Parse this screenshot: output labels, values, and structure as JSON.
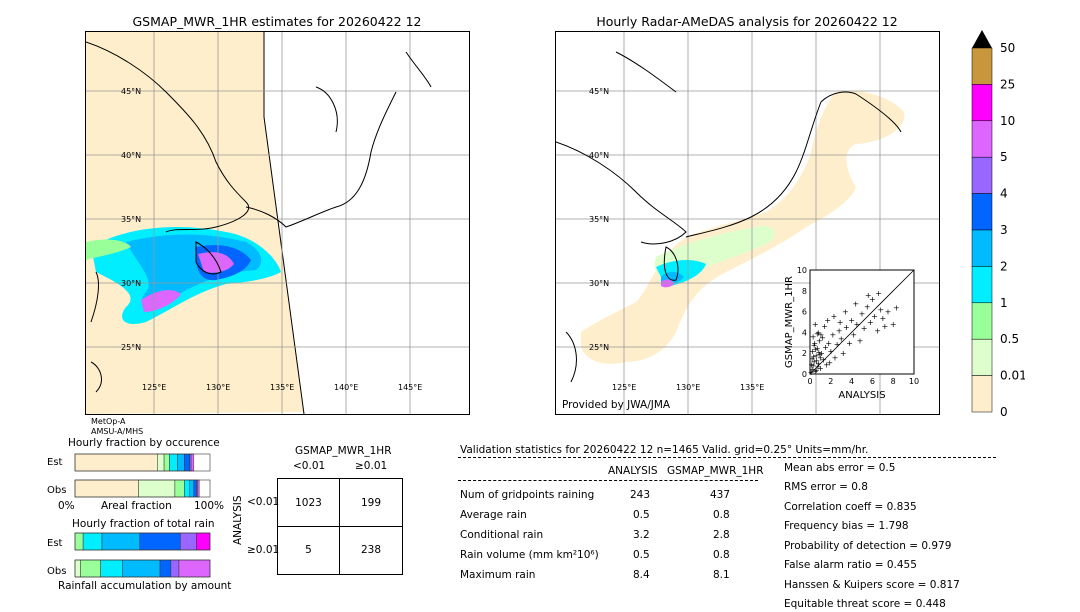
{
  "map_left": {
    "title": "GSMAP_MWR_1HR estimates for 20260422 12",
    "lat_labels": [
      "45°N",
      "40°N",
      "35°N",
      "30°N",
      "25°N"
    ],
    "lon_labels": [
      "125°E",
      "130°E",
      "135°E",
      "140°E",
      "145°E"
    ],
    "satellite_notes": [
      "MetOp-A",
      "AMSU-A/MHS"
    ]
  },
  "map_right": {
    "title": "Hourly Radar-AMeDAS analysis for 20260422 12",
    "lat_labels": [
      "45°N",
      "40°N",
      "35°N",
      "30°N",
      "25°N"
    ],
    "lon_labels": [
      "125°E",
      "130°E",
      "135°E"
    ],
    "credit": "Provided by JWA/JMA"
  },
  "colorbar": {
    "labels": [
      "50",
      "25",
      "10",
      "5",
      "4",
      "3",
      "2",
      "1",
      "0.5",
      "0.01",
      "0"
    ],
    "colors": [
      "#c8963c",
      "#ff00ff",
      "#dd66ff",
      "#9966ff",
      "#0066ff",
      "#00bbff",
      "#00eeff",
      "#99ff99",
      "#ddffcc",
      "#ffeecc"
    ]
  },
  "chart_data": [
    {
      "type": "scatter",
      "xlabel": "ANALYSIS",
      "ylabel": "GSMAP_MWR_1HR",
      "xlim": [
        0,
        10
      ],
      "ylim": [
        0,
        10
      ],
      "ticks": [
        "0",
        "2",
        "4",
        "6",
        "8",
        "10"
      ],
      "points": [
        [
          0.1,
          0.2
        ],
        [
          0.2,
          0.5
        ],
        [
          0.3,
          0.8
        ],
        [
          0.4,
          1.2
        ],
        [
          0.5,
          0.3
        ],
        [
          0.6,
          1.8
        ],
        [
          0.7,
          2.5
        ],
        [
          0.8,
          1.0
        ],
        [
          0.9,
          3.2
        ],
        [
          1.0,
          0.6
        ],
        [
          1.1,
          2.0
        ],
        [
          1.2,
          3.5
        ],
        [
          1.3,
          1.4
        ],
        [
          1.5,
          2.6
        ],
        [
          1.6,
          0.9
        ],
        [
          1.8,
          3.0
        ],
        [
          2.0,
          2.2
        ],
        [
          2.2,
          3.8
        ],
        [
          2.4,
          1.6
        ],
        [
          2.6,
          2.9
        ],
        [
          2.8,
          4.2
        ],
        [
          3.0,
          3.4
        ],
        [
          3.2,
          2.0
        ],
        [
          3.5,
          4.5
        ],
        [
          3.8,
          3.0
        ],
        [
          4.0,
          5.2
        ],
        [
          4.2,
          3.8
        ],
        [
          4.5,
          4.8
        ],
        [
          4.8,
          3.2
        ],
        [
          5.0,
          5.8
        ],
        [
          5.2,
          4.4
        ],
        [
          5.5,
          6.5
        ],
        [
          5.8,
          5.0
        ],
        [
          6.0,
          7.2
        ],
        [
          6.2,
          5.6
        ],
        [
          6.5,
          4.2
        ],
        [
          6.8,
          6.2
        ],
        [
          7.0,
          5.4
        ],
        [
          7.5,
          6.0
        ],
        [
          8.0,
          4.8
        ],
        [
          8.3,
          6.4
        ],
        [
          0.2,
          1.5
        ],
        [
          0.4,
          2.8
        ],
        [
          0.6,
          0.4
        ],
        [
          0.8,
          4.0
        ],
        [
          1.0,
          1.6
        ],
        [
          1.4,
          4.6
        ],
        [
          0.3,
          3.6
        ],
        [
          0.5,
          4.8
        ],
        [
          0.7,
          3.9
        ],
        [
          1.7,
          5.2
        ],
        [
          2.3,
          5.6
        ],
        [
          1.9,
          1.1
        ],
        [
          0.15,
          0.9
        ],
        [
          0.25,
          2.2
        ],
        [
          0.35,
          1.7
        ],
        [
          0.45,
          3.0
        ],
        [
          0.55,
          2.4
        ],
        [
          0.65,
          1.3
        ],
        [
          0.75,
          0.7
        ],
        [
          0.85,
          2.1
        ],
        [
          0.95,
          1.9
        ],
        [
          1.05,
          3.8
        ],
        [
          2.9,
          5.0
        ],
        [
          3.4,
          6.0
        ],
        [
          4.4,
          6.8
        ],
        [
          5.6,
          7.6
        ],
        [
          6.6,
          7.8
        ],
        [
          7.2,
          4.6
        ]
      ]
    },
    {
      "type": "bar",
      "title": "Hourly fraction by occurence",
      "categories": [
        "Est",
        "Obs"
      ],
      "xlabel": "Areal fraction",
      "ticks": [
        "0%",
        "100%"
      ],
      "rows": [
        {
          "name": "Est",
          "segments": [
            {
              "value": 0.61,
              "color": "#ffeecc"
            },
            {
              "value": 0.05,
              "color": "#ddffcc"
            },
            {
              "value": 0.04,
              "color": "#99ff99"
            },
            {
              "value": 0.06,
              "color": "#00eeff"
            },
            {
              "value": 0.05,
              "color": "#00bbff"
            },
            {
              "value": 0.04,
              "color": "#0066ff"
            },
            {
              "value": 0.01,
              "color": "#9966ff"
            },
            {
              "value": 0.02,
              "color": "#dd66ff"
            }
          ]
        },
        {
          "name": "Obs",
          "segments": [
            {
              "value": 0.47,
              "color": "#ffeecc"
            },
            {
              "value": 0.27,
              "color": "#ddffcc"
            },
            {
              "value": 0.07,
              "color": "#99ff99"
            },
            {
              "value": 0.04,
              "color": "#00eeff"
            },
            {
              "value": 0.03,
              "color": "#00bbff"
            },
            {
              "value": 0.02,
              "color": "#0066ff"
            },
            {
              "value": 0.01,
              "color": "#9966ff"
            },
            {
              "value": 0.01,
              "color": "#dd66ff"
            }
          ]
        }
      ]
    },
    {
      "type": "bar",
      "title": "Hourly fraction of total rain",
      "categories": [
        "Est",
        "Obs"
      ],
      "xlabel": "Rainfall accumulation by amount",
      "rows": [
        {
          "name": "Est",
          "segments": [
            {
              "value": 0.06,
              "color": "#99ff99"
            },
            {
              "value": 0.14,
              "color": "#00eeff"
            },
            {
              "value": 0.28,
              "color": "#00bbff"
            },
            {
              "value": 0.3,
              "color": "#0066ff"
            },
            {
              "value": 0.12,
              "color": "#9966ff"
            },
            {
              "value": 0.1,
              "color": "#ff00ff"
            }
          ]
        },
        {
          "name": "Obs",
          "segments": [
            {
              "value": 0.04,
              "color": "#ddffcc"
            },
            {
              "value": 0.15,
              "color": "#99ff99"
            },
            {
              "value": 0.16,
              "color": "#00eeff"
            },
            {
              "value": 0.28,
              "color": "#00bbff"
            },
            {
              "value": 0.08,
              "color": "#0066ff"
            },
            {
              "value": 0.06,
              "color": "#9966ff"
            },
            {
              "value": 0.23,
              "color": "#dd66ff"
            }
          ]
        }
      ]
    }
  ],
  "contingency": {
    "title": "GSMAP_MWR_1HR",
    "col_headers": [
      "<0.01",
      "≥0.01"
    ],
    "row_label": "ANALYSIS",
    "row_headers": [
      "<0.01",
      "≥0.01"
    ],
    "cells": [
      [
        "1023",
        "199"
      ],
      [
        "5",
        "238"
      ]
    ]
  },
  "validation": {
    "header": "Validation statistics for 20260422 12  n=1465 Valid. grid=0.25° Units=mm/hr.",
    "col_analysis": "ANALYSIS",
    "col_gsmap": "GSMAP_MWR_1HR",
    "rows": [
      {
        "label": "Num of gridpoints raining",
        "a": "243",
        "g": "437"
      },
      {
        "label": "Average rain",
        "a": "0.5",
        "g": "0.8"
      },
      {
        "label": "Conditional rain",
        "a": "3.2",
        "g": "2.8"
      },
      {
        "label": "Rain volume (mm km²10⁶)",
        "a": "0.5",
        "g": "0.8"
      },
      {
        "label": "Maximum rain",
        "a": "8.4",
        "g": "8.1"
      }
    ],
    "scores": [
      "Mean abs error =    0.5",
      "RMS error =    0.8",
      "Correlation coeff =  0.835",
      "Frequency bias =  1.798",
      "Probability of detection =  0.979",
      "False alarm ratio =  0.455",
      "Hanssen & Kuipers score =  0.817",
      "Equitable threat score =  0.448"
    ]
  }
}
